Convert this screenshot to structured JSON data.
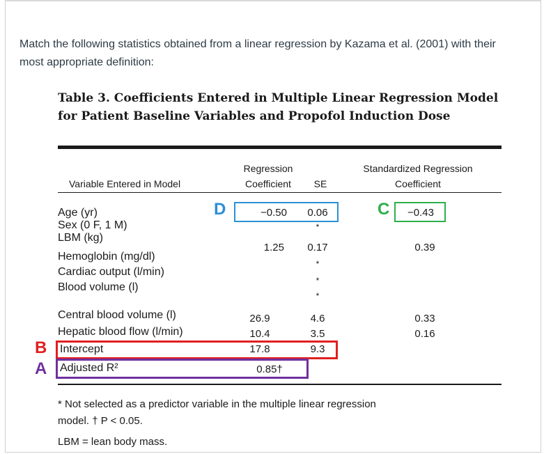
{
  "question": "Match the following statistics obtained from a linear regression by Kazama et al. (2001) with their most appropriate definition:",
  "table": {
    "title": "Table 3. Coefficients Entered in Multiple Linear Regression Model for Patient Baseline Variables and Propofol Induction Dose",
    "headers": {
      "variable": "Variable Entered in Model",
      "coef_line1": "Regression",
      "coef_line2": "Coefficient",
      "se": "SE",
      "std_line1": "Standardized Regression",
      "std_line2": "Coefficient"
    },
    "rows": [
      {
        "label": "Age (yr)",
        "coef": "−0.50",
        "se": "0.06",
        "std": "−0.43"
      },
      {
        "label": "Sex (0 F, 1 M)",
        "coef": "",
        "se": "*",
        "std": ""
      },
      {
        "label": "LBM (kg)",
        "coef": "1.25",
        "se": "0.17",
        "std": "0.39"
      },
      {
        "label": "Hemoglobin (mg/dl)",
        "coef": "",
        "se": "*",
        "std": ""
      },
      {
        "label": "Cardiac output (l/min)",
        "coef": "",
        "se": "*",
        "std": ""
      },
      {
        "label": "Blood volume (l)",
        "coef": "",
        "se": "*",
        "std": ""
      },
      {
        "label": "Central blood volume (l)",
        "coef": "26.9",
        "se": "4.6",
        "std": "0.33"
      },
      {
        "label": "Hepatic blood flow (l/min)",
        "coef": "10.4",
        "se": "3.5",
        "std": "0.16"
      },
      {
        "label": "Intercept",
        "coef": "17.8",
        "se": "9.3",
        "std": ""
      },
      {
        "label": "Adjusted R²",
        "coef": "0.85†",
        "se": "",
        "std": ""
      }
    ],
    "footnote_line1": "* Not selected as a predictor variable in the multiple linear regression",
    "footnote_line2": "model.   † P < 0.05.",
    "abbrev": "LBM = lean body mass."
  },
  "annotations": {
    "A": {
      "letter": "A",
      "color": "#7030a0"
    },
    "B": {
      "letter": "B",
      "color": "#e02020"
    },
    "C": {
      "letter": "C",
      "color": "#2eaf4a"
    },
    "D": {
      "letter": "D",
      "color": "#2a8fd6"
    }
  }
}
